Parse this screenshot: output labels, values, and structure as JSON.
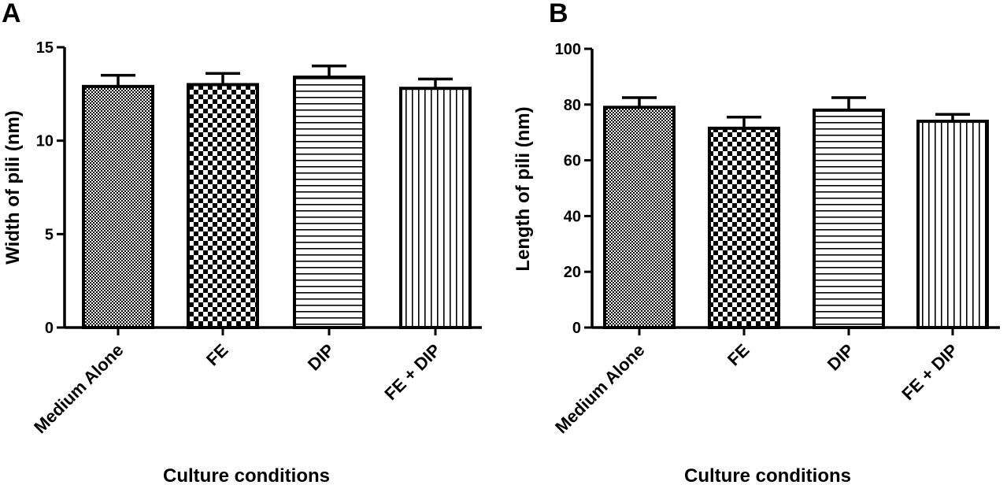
{
  "chart_data": [
    {
      "panel": "A",
      "type": "bar",
      "categories": [
        "Medium Alone",
        "FE",
        "DIP",
        "FE + DIP"
      ],
      "values": [
        12.9,
        13.0,
        13.4,
        12.8
      ],
      "errors": [
        0.6,
        0.6,
        0.6,
        0.5
      ],
      "patterns": [
        "fine-dots",
        "checker",
        "horizontal-lines",
        "vertical-lines"
      ],
      "xlabel": "Culture conditions",
      "ylabel": "Width of pili (nm)",
      "ylim": [
        0,
        15
      ],
      "yticks": [
        0,
        5,
        10,
        15
      ]
    },
    {
      "panel": "B",
      "type": "bar",
      "categories": [
        "Medium Alone",
        "FE",
        "DIP",
        "FE + DIP"
      ],
      "values": [
        79,
        71.5,
        78,
        74
      ],
      "errors": [
        3.5,
        4,
        4.5,
        2.5
      ],
      "patterns": [
        "fine-dots",
        "checker",
        "horizontal-lines",
        "vertical-lines"
      ],
      "xlabel": "Culture conditions",
      "ylabel": "Length of pili (nm)",
      "ylim": [
        0,
        100
      ],
      "yticks": [
        0,
        20,
        40,
        60,
        80,
        100
      ]
    }
  ]
}
